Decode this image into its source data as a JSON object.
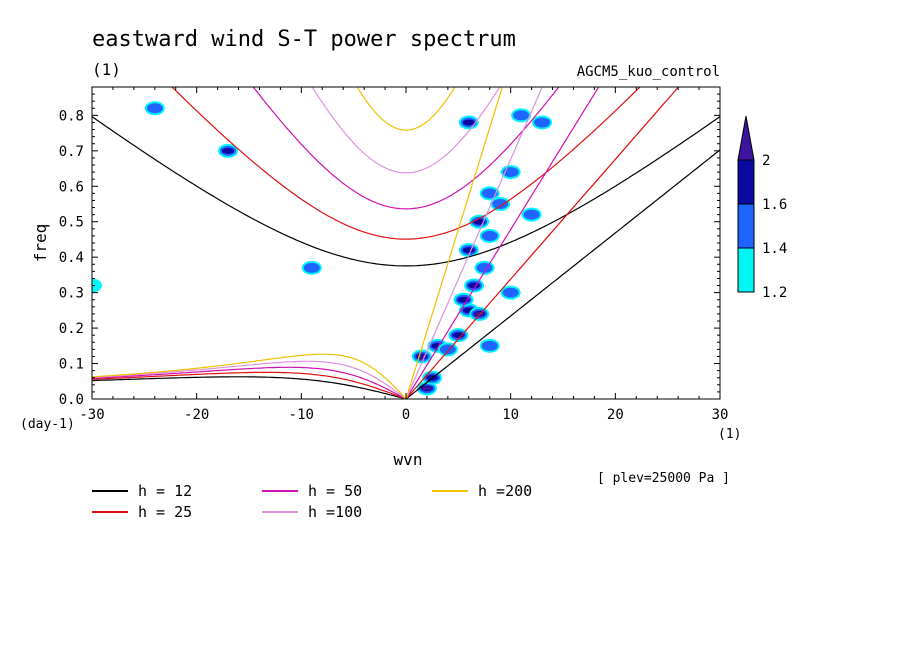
{
  "chart_data": {
    "type": "heatmap",
    "title": "eastward wind S-T power spectrum",
    "title_unit": "(1)",
    "subtitle_right": "AGCM5_kuo_control",
    "xlabel": "wvn",
    "x_unit": "(1)",
    "ylabel": "freq",
    "y_unit": "(day-1)",
    "xlim": [
      -30,
      30
    ],
    "ylim": [
      0,
      0.88
    ],
    "x_ticks": [
      -30,
      -20,
      -10,
      0,
      10,
      20,
      30
    ],
    "x_tick_labels": [
      "-30",
      "-20",
      "-10",
      "0",
      "10",
      "20",
      "30"
    ],
    "y_ticks": [
      0,
      0.1,
      0.2,
      0.3,
      0.4,
      0.5,
      0.6,
      0.7,
      0.8
    ],
    "y_tick_labels": [
      "0.0",
      "0.1",
      "0.2",
      "0.3",
      "0.4",
      "0.5",
      "0.6",
      "0.7",
      "0.8"
    ],
    "note": "[ plev=25000 Pa ]",
    "colorbar": {
      "levels": [
        1.2,
        1.4,
        1.6,
        2
      ],
      "labels": [
        "1.2",
        "1.4",
        "1.6",
        "2"
      ],
      "colors": [
        "#00f5f5",
        "#1e64ff",
        "#0a0aa0",
        "#3c14a0"
      ]
    },
    "dispersion_curves": [
      {
        "name": "h = 12",
        "h": 12,
        "color": "#000000"
      },
      {
        "name": "h = 25",
        "h": 25,
        "color": "#e01010"
      },
      {
        "name": "h = 50",
        "h": 50,
        "color": "#d010b0"
      },
      {
        "name": "h =100",
        "h": 100,
        "color": "#e090e0"
      },
      {
        "name": "h =200",
        "h": 200,
        "color": "#f0c000"
      }
    ],
    "spectral_maxima": [
      {
        "x": 2,
        "y": 0.03,
        "level": 2
      },
      {
        "x": 1.5,
        "y": 0.12,
        "level": 2
      },
      {
        "x": 2.5,
        "y": 0.06,
        "level": 1.6
      },
      {
        "x": 3,
        "y": 0.15,
        "level": 1.6
      },
      {
        "x": 4,
        "y": 0.14,
        "level": 1.4
      },
      {
        "x": 5,
        "y": 0.18,
        "level": 1.6
      },
      {
        "x": 6,
        "y": 0.25,
        "level": 1.6
      },
      {
        "x": 7,
        "y": 0.24,
        "level": 2
      },
      {
        "x": 5.5,
        "y": 0.28,
        "level": 1.6
      },
      {
        "x": 6.5,
        "y": 0.32,
        "level": 1.6
      },
      {
        "x": 6,
        "y": 0.42,
        "level": 1.6
      },
      {
        "x": 7.5,
        "y": 0.37,
        "level": 1.4
      },
      {
        "x": 7,
        "y": 0.5,
        "level": 1.6
      },
      {
        "x": 8,
        "y": 0.46,
        "level": 1.4
      },
      {
        "x": 8,
        "y": 0.58,
        "level": 1.4
      },
      {
        "x": 9,
        "y": 0.55,
        "level": 1.4
      },
      {
        "x": 10,
        "y": 0.64,
        "level": 1.4
      },
      {
        "x": 6,
        "y": 0.78,
        "level": 1.6
      },
      {
        "x": 11,
        "y": 0.8,
        "level": 1.4
      },
      {
        "x": 13,
        "y": 0.78,
        "level": 1.4
      },
      {
        "x": 8,
        "y": 0.15,
        "level": 1.4
      },
      {
        "x": 10,
        "y": 0.3,
        "level": 1.4
      },
      {
        "x": 12,
        "y": 0.52,
        "level": 1.4
      },
      {
        "x": -17,
        "y": 0.7,
        "level": 1.6
      },
      {
        "x": -24,
        "y": 0.82,
        "level": 1.4
      },
      {
        "x": -30,
        "y": 0.32,
        "level": 1.2
      },
      {
        "x": -9,
        "y": 0.37,
        "level": 1.4
      }
    ]
  }
}
